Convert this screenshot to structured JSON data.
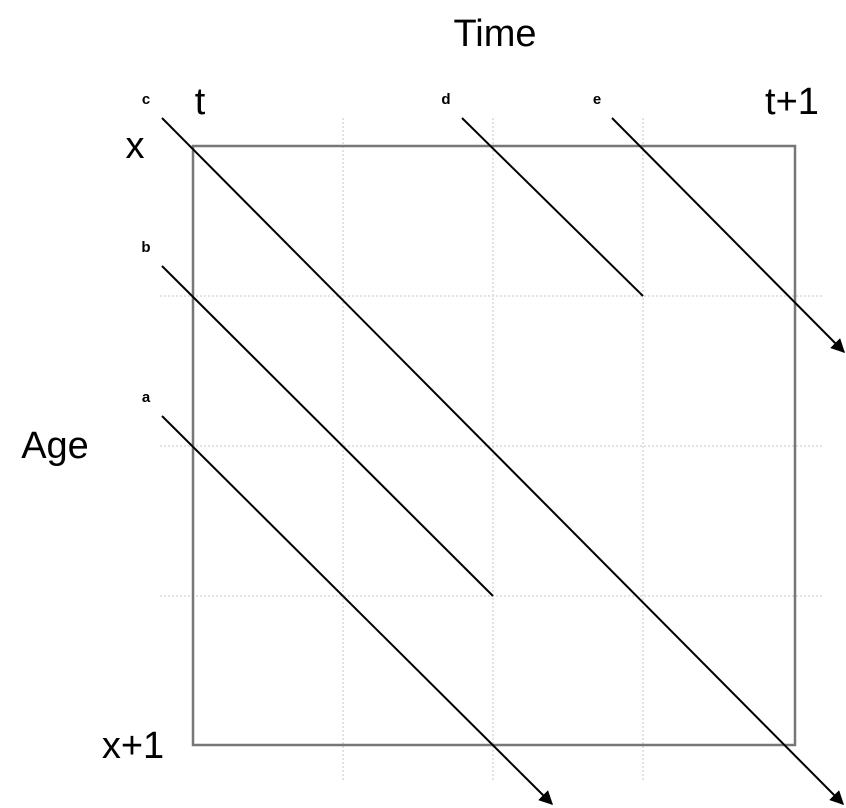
{
  "title": "Time",
  "axis_label": "Age",
  "time_labels": [
    "t",
    "t+1"
  ],
  "age_labels": [
    "x",
    "x+1"
  ],
  "lines": [
    {
      "label": "a"
    },
    {
      "label": "b"
    },
    {
      "label": "c"
    },
    {
      "label": "d"
    },
    {
      "label": "e"
    }
  ]
}
